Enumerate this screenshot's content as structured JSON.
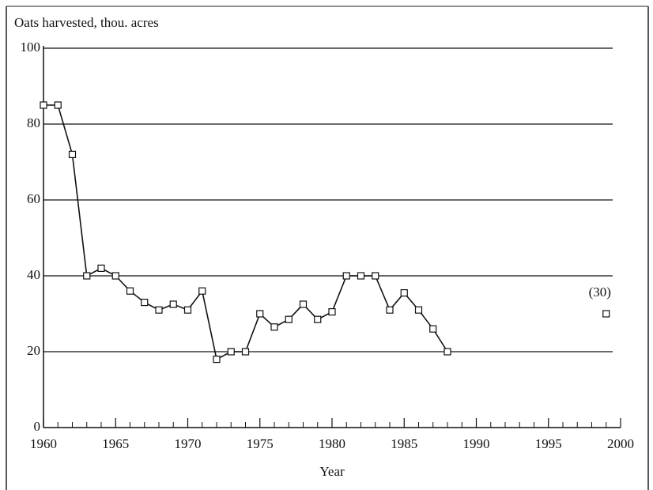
{
  "chart_data": {
    "type": "line",
    "y_label": "Oats harvested, thou. acres",
    "x_label": "Year",
    "series": [
      {
        "color": "#111111",
        "x": [
          1960,
          1961,
          1962,
          1963,
          1964,
          1965,
          1966,
          1967,
          1968,
          1969,
          1970,
          1971,
          1972,
          1973,
          1974,
          1975,
          1976,
          1977,
          1978,
          1979,
          1980,
          1981,
          1982,
          1983,
          1984,
          1985,
          1986,
          1987,
          1988
        ],
        "values": [
          85,
          85,
          72,
          40,
          42,
          40,
          36,
          33,
          31,
          32.5,
          31,
          36,
          18,
          20,
          20,
          30,
          26.5,
          28.5,
          32.5,
          28.5,
          30.5,
          40,
          40,
          40,
          31,
          35.5,
          31,
          26,
          20
        ]
      },
      {
        "color": "#111111",
        "x": [
          1999
        ],
        "values": [
          30
        ],
        "value_labels": [
          "(30)"
        ]
      }
    ],
    "xlim": [
      1960,
      2000
    ],
    "xticks": [
      1960,
      1965,
      1970,
      1975,
      1980,
      1985,
      1990,
      1995,
      2000
    ],
    "x_minor_ticks": [
      1961,
      1962,
      1963,
      1964,
      1966,
      1967,
      1968,
      1969,
      1971,
      1972,
      1973,
      1974,
      1976,
      1977,
      1978,
      1979,
      1981,
      1982,
      1983,
      1984,
      1986,
      1987,
      1988,
      1989,
      1991,
      1992,
      1993,
      1994,
      1996,
      1997,
      1998,
      1999
    ],
    "ylim": [
      0,
      100
    ],
    "yticks": [
      0,
      20,
      40,
      60,
      80,
      100
    ],
    "grid": true
  }
}
